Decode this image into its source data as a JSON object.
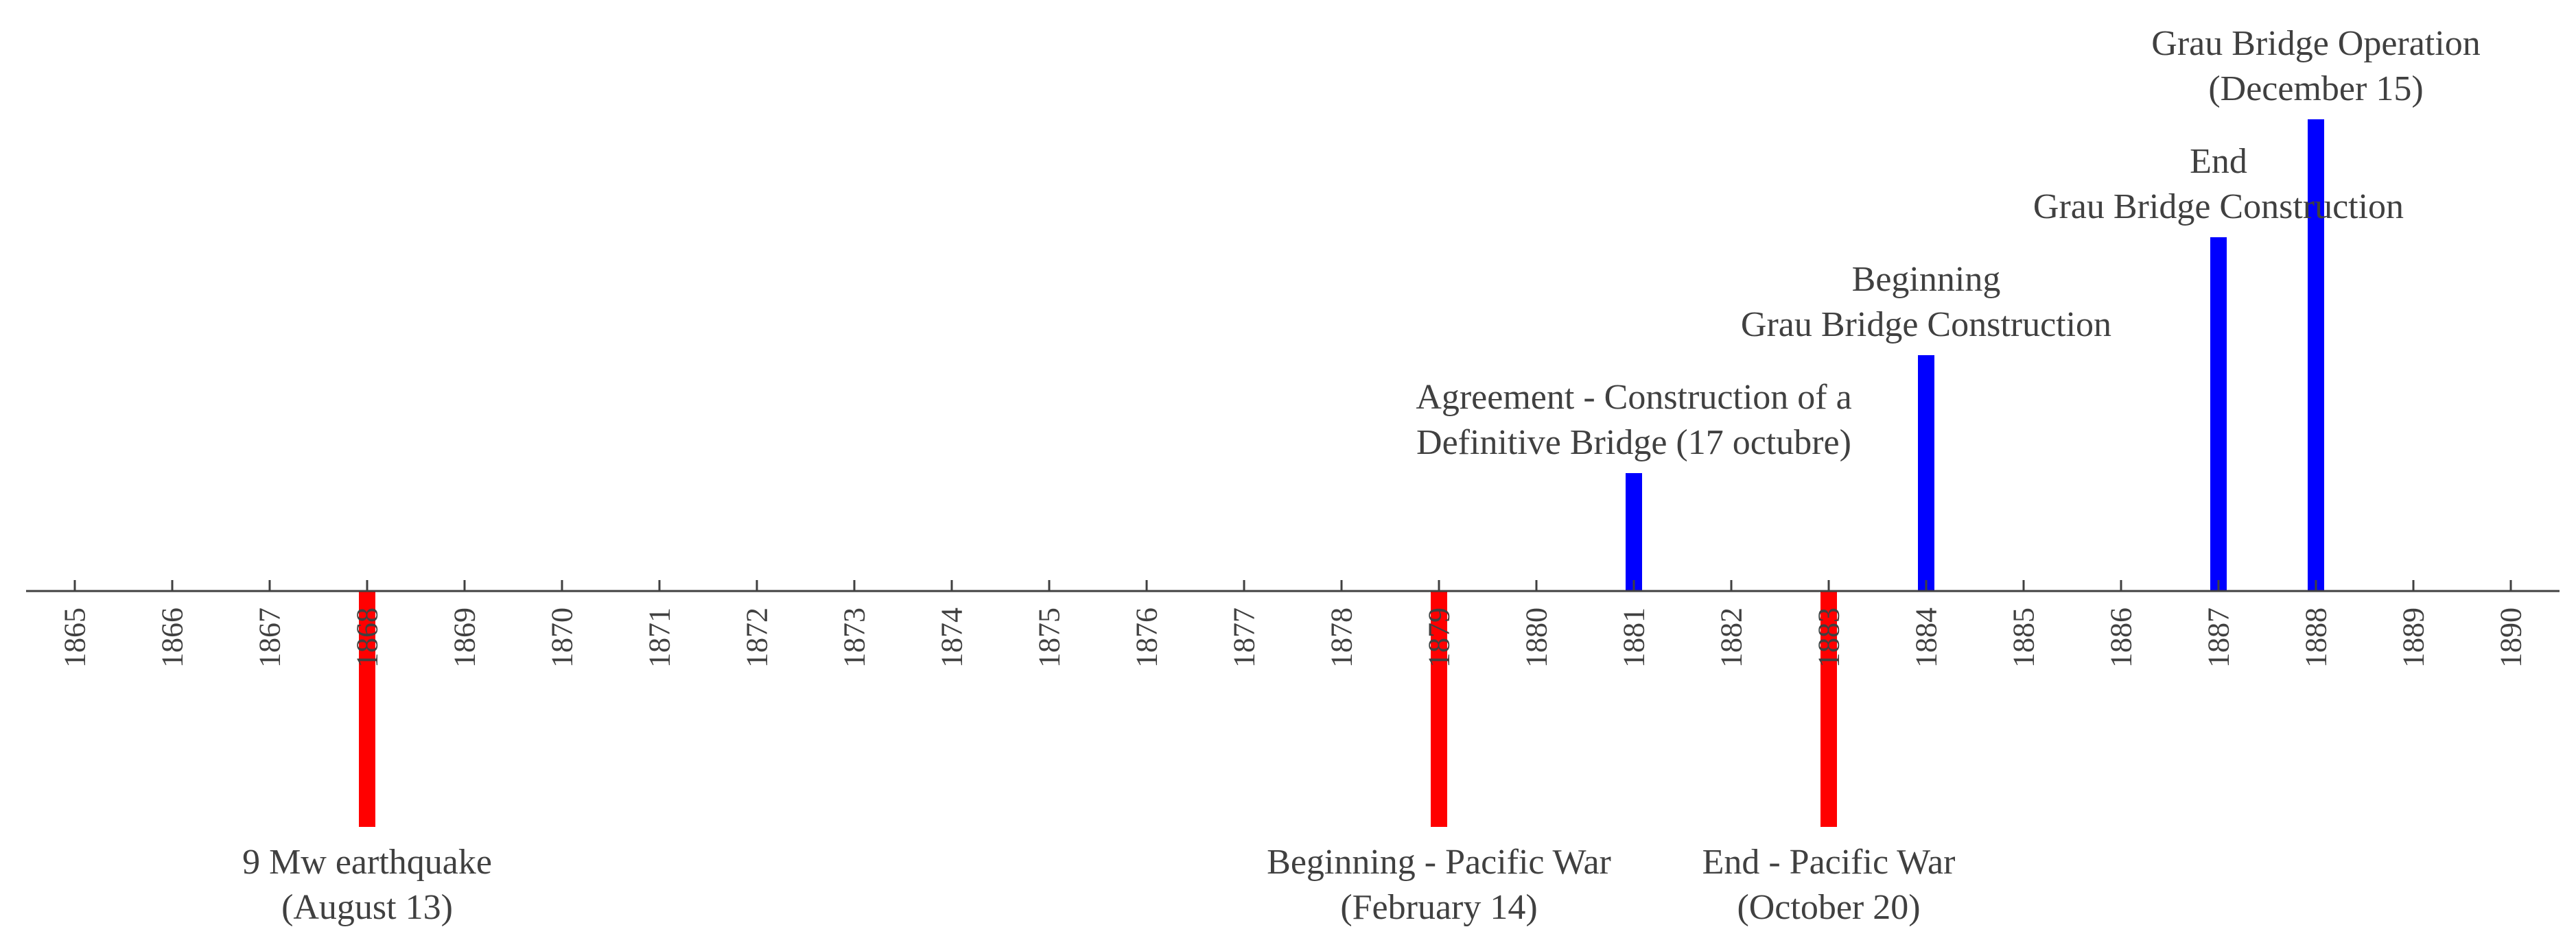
{
  "chart_data": {
    "type": "bar",
    "xlim": [
      1864.5,
      1890.5
    ],
    "ylim": [
      -4,
      8.2
    ],
    "ticks": [
      "1865",
      "1866",
      "1867",
      "1868",
      "1869",
      "1870",
      "1871",
      "1872",
      "1873",
      "1874",
      "1875",
      "1876",
      "1877",
      "1878",
      "1879",
      "1880",
      "1881",
      "1882",
      "1883",
      "1884",
      "1885",
      "1886",
      "1887",
      "1888",
      "1889",
      "1890"
    ],
    "events": [
      {
        "year": 1868,
        "value": -4,
        "color": "#ff0000",
        "label": [
          "9 Mw earthquake",
          "(August 13)"
        ]
      },
      {
        "year": 1879,
        "value": -4,
        "color": "#ff0000",
        "label": [
          "Beginning - Pacific War",
          "(February 14)"
        ]
      },
      {
        "year": 1883,
        "value": -4,
        "color": "#ff0000",
        "label": [
          "End - Pacific War",
          "(October 20)"
        ]
      },
      {
        "year": 1881,
        "value": 2,
        "color": "#0000ff",
        "label": [
          "Agreement - Construction of a",
          "Definitive Bridge (17 octubre)"
        ]
      },
      {
        "year": 1884,
        "value": 4,
        "color": "#0000ff",
        "label": [
          "Beginning",
          "Grau Bridge Construction"
        ]
      },
      {
        "year": 1887,
        "value": 6,
        "color": "#0000ff",
        "label": [
          "End",
          "Grau Bridge Construction"
        ]
      },
      {
        "year": 1888,
        "value": 8,
        "color": "#0000ff",
        "label": [
          "Grau Bridge Operation",
          "(December 15)"
        ]
      }
    ],
    "colors": {
      "axis": "#404040",
      "negative": "#ff0000",
      "positive": "#0000ff"
    },
    "grid": false
  }
}
